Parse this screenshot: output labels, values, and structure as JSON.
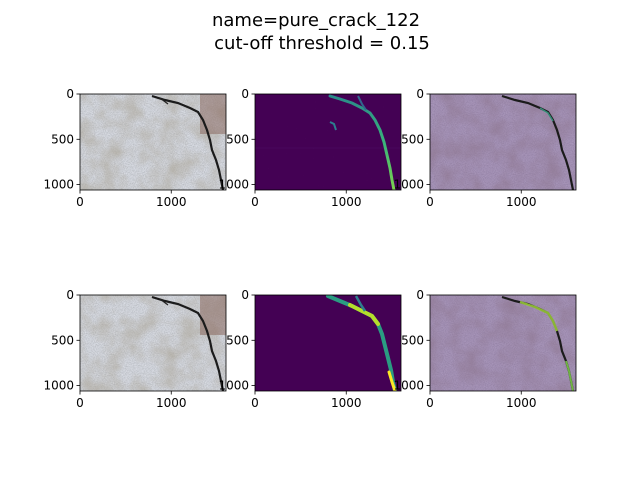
{
  "figure": {
    "title_line1": "name=pure_crack_122",
    "title_line2": "cut-off threshold = 0.15"
  },
  "chart_data": [
    {
      "type": "heatmap",
      "panel": "row1-original",
      "image": "concrete surface photo with crack",
      "xlim": [
        0,
        1600
      ],
      "ylim": [
        1060,
        0
      ],
      "xticks": [
        0,
        1000
      ],
      "yticks": [
        0,
        500,
        1000
      ]
    },
    {
      "type": "heatmap",
      "panel": "row1-prediction",
      "image": "crack probability map (viridis)",
      "xlim": [
        0,
        1600
      ],
      "ylim": [
        1060,
        0
      ],
      "xticks": [
        0,
        1000
      ],
      "yticks": [
        0,
        500,
        1000
      ]
    },
    {
      "type": "heatmap",
      "panel": "row1-overlay",
      "image": "photo with purple overlay",
      "xlim": [
        0,
        1600
      ],
      "ylim": [
        1060,
        0
      ],
      "xticks": [
        0,
        1000
      ],
      "yticks": [
        0,
        500,
        1000
      ]
    },
    {
      "type": "heatmap",
      "panel": "row2-original",
      "image": "concrete surface photo with crack",
      "xlim": [
        0,
        1600
      ],
      "ylim": [
        1060,
        0
      ],
      "xticks": [
        0,
        1000
      ],
      "yticks": [
        0,
        500,
        1000
      ]
    },
    {
      "type": "heatmap",
      "panel": "row2-prediction",
      "image": "thresholded crack map (viridis)",
      "xlim": [
        0,
        1600
      ],
      "ylim": [
        1060,
        0
      ],
      "xticks": [
        0,
        1000
      ],
      "yticks": [
        0,
        500,
        1000
      ]
    },
    {
      "type": "heatmap",
      "panel": "row2-overlay",
      "image": "photo with purple overlay and green crack",
      "xlim": [
        0,
        1600
      ],
      "ylim": [
        1060,
        0
      ],
      "xticks": [
        0,
        1000
      ],
      "yticks": [
        0,
        500,
        1000
      ]
    }
  ],
  "colors": {
    "viridis_bg": "#440154",
    "viridis_mid": "#2c7f8e",
    "viridis_high": "#a8db34",
    "viridis_max": "#fde725",
    "photo_light": "#c9cdd2",
    "photo_dark": "#6b655c",
    "overlay": "#8a6a94"
  }
}
